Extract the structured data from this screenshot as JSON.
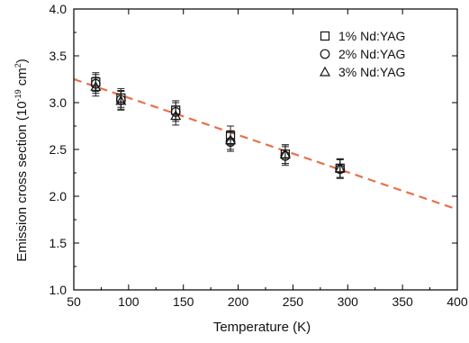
{
  "chart_data": {
    "type": "scatter",
    "xlabel": "Temperature (K)",
    "ylabel_main": "Emission cross section (10",
    "ylabel_exp": "-19",
    "ylabel_unit": " cm",
    "ylabel_unit_exp": "2",
    "ylabel_close": ")",
    "xlim": [
      50,
      400
    ],
    "ylim": [
      1.0,
      4.0
    ],
    "xticks": [
      50,
      100,
      150,
      200,
      250,
      300,
      350,
      400
    ],
    "yticks": [
      1.0,
      1.5,
      2.0,
      2.5,
      3.0,
      3.5,
      4.0
    ],
    "xtick_labels": [
      "50",
      "100",
      "150",
      "200",
      "250",
      "300",
      "350",
      "400"
    ],
    "ytick_labels": [
      "1.0",
      "1.5",
      "2.0",
      "2.5",
      "3.0",
      "3.5",
      "4.0"
    ],
    "legend_position": "top-right",
    "series": [
      {
        "name": "1% Nd:YAG",
        "marker": "square",
        "x": [
          70,
          93,
          143,
          193,
          243,
          293
        ],
        "y": [
          3.22,
          3.05,
          2.92,
          2.65,
          2.45,
          2.3
        ],
        "err": [
          0.1,
          0.1,
          0.1,
          0.1,
          0.1,
          0.1
        ]
      },
      {
        "name": "2% Nd:YAG",
        "marker": "circle",
        "x": [
          70,
          93,
          143,
          193,
          243,
          293
        ],
        "y": [
          3.2,
          3.03,
          2.9,
          2.58,
          2.43,
          2.29
        ],
        "err": [
          0.1,
          0.1,
          0.1,
          0.1,
          0.1,
          0.1
        ]
      },
      {
        "name": "3% Nd:YAG",
        "marker": "triangle",
        "x": [
          70,
          93,
          143,
          193,
          243,
          293
        ],
        "y": [
          3.17,
          3.02,
          2.86,
          2.6,
          2.45,
          2.3
        ],
        "err": [
          0.1,
          0.1,
          0.1,
          0.1,
          0.1,
          0.1
        ]
      }
    ],
    "fit_line": {
      "style": "dashed",
      "color": "#e8704d",
      "x": [
        50,
        400
      ],
      "y": [
        3.25,
        1.86
      ]
    }
  }
}
